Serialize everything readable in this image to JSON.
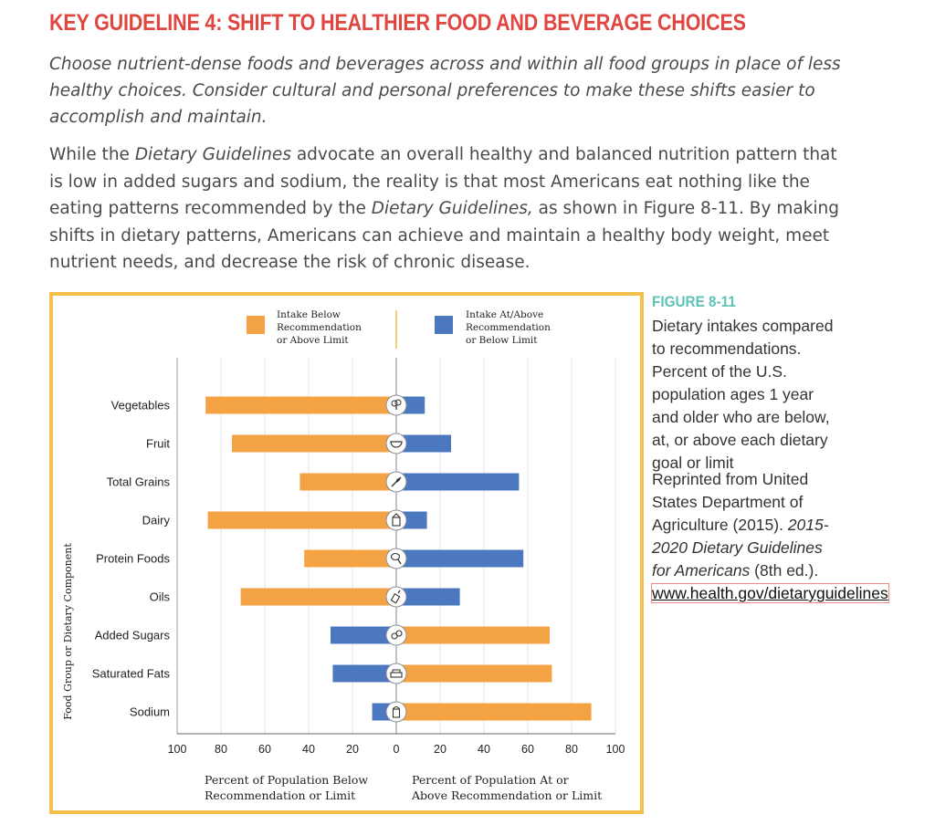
{
  "heading": "KEY GUIDELINE 4: SHIFT TO HEALTHIER FOOD AND BEVERAGE CHOICES",
  "intro": "Choose nutrient-dense foods and beverages across and within all food groups in place of less healthy choices. Consider cultural and personal preferences to make these shifts easier to accomplish and maintain.",
  "body": {
    "part1": "While the ",
    "em1": "Dietary Guidelines",
    "part2": " advocate an overall healthy and balanced nutrition pattern that is low in added sugars and sodium, the reality is that most Americans eat nothing like the eating patterns recommended by the ",
    "em2": "Dietary Guidelines,",
    "part3": " as shown in Figure 8-11. By making shifts in dietary patterns, Americans can achieve and maintain a healthy body weight, meet nutrient needs, and decrease the risk of chronic disease."
  },
  "figure": {
    "label": "FIGURE 8-11",
    "caption": "Dietary intakes compared to recommendations. Percent of the U.S. population ages 1 year and older who are below, at, or above each dietary goal or limit",
    "credit_part1": "Reprinted from United States Department of Agriculture (2015). ",
    "credit_em": "2015-2020 Dietary Guidelines for Americans",
    "credit_part2": " (8th ed.). ",
    "credit_link": "www.health.gov/dietaryguidelines"
  },
  "colors": {
    "below": "#f3a343",
    "above": "#4c78c0",
    "heading": "#e0463f",
    "figure_label": "#5cc3b6",
    "frame": "#f3c14b"
  },
  "chart_data": {
    "type": "bar",
    "orientation": "horizontal-diverging",
    "legend": {
      "below": [
        "Intake Below",
        "Recommendation",
        "or Above Limit"
      ],
      "above": [
        "Intake At/Above",
        "Recommendation",
        "or Below Limit"
      ]
    },
    "ylabel": "Food Group or Dietary Component",
    "xlabel_left": [
      "Percent of Population Below",
      "Recommendation or Limit"
    ],
    "xlabel_right": [
      "Percent of Population At or",
      "Above Recommendation or Limit"
    ],
    "xticks": [
      "100",
      "80",
      "60",
      "40",
      "20",
      "0",
      "20",
      "40",
      "60",
      "80",
      "100"
    ],
    "xlim": [
      -100,
      100
    ],
    "categories": [
      "Vegetables",
      "Fruit",
      "Total Grains",
      "Dairy",
      "Protein Foods",
      "Oils",
      "Added Sugars",
      "Saturated Fats",
      "Sodium"
    ],
    "icons": [
      "broccoli-icon",
      "melon-slice-icon",
      "grain-stalk-icon",
      "milk-carton-icon",
      "drumstick-icon",
      "oil-bottle-icon",
      "candy-icon",
      "butter-icon",
      "salt-shaker-icon"
    ],
    "series": [
      {
        "name": "Intake Below Recommendation or Above Limit",
        "side": "left",
        "color": "#f3a343",
        "values": [
          87,
          75,
          44,
          86,
          42,
          71,
          0,
          0,
          0
        ]
      },
      {
        "name": "Intake Below Recommendation or Above Limit",
        "side": "right",
        "color": "#f3a343",
        "values": [
          0,
          0,
          0,
          0,
          0,
          0,
          70,
          71,
          89
        ]
      },
      {
        "name": "Intake At/Above Recommendation or Below Limit",
        "side": "right",
        "color": "#4c78c0",
        "values": [
          13,
          25,
          56,
          14,
          58,
          29,
          0,
          0,
          0
        ]
      },
      {
        "name": "Intake At/Above Recommendation or Below Limit",
        "side": "left",
        "color": "#4c78c0",
        "values": [
          0,
          0,
          0,
          0,
          0,
          0,
          30,
          29,
          11
        ]
      }
    ],
    "grid": true
  }
}
